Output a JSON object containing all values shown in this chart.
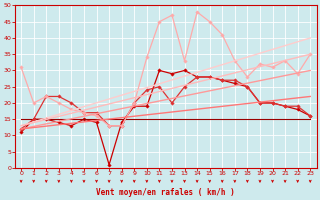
{
  "bg_color": "#ceeaed",
  "grid_color": "#ffffff",
  "xlabel": "Vent moyen/en rafales ( km/h )",
  "xlabel_color": "#cc0000",
  "tick_color": "#cc0000",
  "arrow_color": "#cc0000",
  "xlim": [
    -0.5,
    23.5
  ],
  "ylim": [
    0,
    50
  ],
  "yticks": [
    0,
    5,
    10,
    15,
    20,
    25,
    30,
    35,
    40,
    45,
    50
  ],
  "xticks": [
    0,
    1,
    2,
    3,
    4,
    5,
    6,
    7,
    8,
    9,
    10,
    11,
    12,
    13,
    14,
    15,
    16,
    17,
    18,
    19,
    20,
    21,
    22,
    23
  ],
  "lines": [
    {
      "x": [
        0,
        1,
        2,
        3,
        4,
        5,
        6,
        7,
        8,
        9,
        10,
        11,
        12,
        13,
        14,
        15,
        16,
        17,
        18,
        19,
        20,
        21,
        22,
        23
      ],
      "y": [
        11,
        15,
        15,
        14,
        13,
        15,
        14,
        1,
        14,
        19,
        19,
        30,
        29,
        30,
        28,
        28,
        27,
        26,
        25,
        20,
        20,
        19,
        18,
        16
      ],
      "color": "#cc0000",
      "lw": 0.9,
      "marker": "D",
      "ms": 1.8
    },
    {
      "x": [
        0,
        1,
        2,
        3,
        4,
        5,
        6,
        7,
        8,
        9,
        10,
        11,
        12,
        13,
        14,
        15,
        16,
        17,
        18,
        19,
        20,
        21,
        22,
        23
      ],
      "y": [
        15,
        15,
        15,
        15,
        15,
        15,
        15,
        15,
        15,
        15,
        15,
        15,
        15,
        15,
        15,
        15,
        15,
        15,
        15,
        15,
        15,
        15,
        15,
        15
      ],
      "color": "#990000",
      "lw": 0.8,
      "marker": null,
      "ms": 0
    },
    {
      "x": [
        0,
        1,
        2,
        3,
        4,
        5,
        6,
        7,
        8,
        9,
        10,
        11,
        12,
        13,
        14,
        15,
        16,
        17,
        18,
        19,
        20,
        21,
        22,
        23
      ],
      "y": [
        12,
        15,
        22,
        22,
        20,
        17,
        17,
        13,
        13,
        20,
        24,
        25,
        20,
        25,
        28,
        28,
        27,
        27,
        25,
        20,
        20,
        19,
        19,
        16
      ],
      "color": "#dd3333",
      "lw": 0.9,
      "marker": "D",
      "ms": 1.8
    },
    {
      "x": [
        0,
        1,
        2,
        3,
        4,
        5,
        6,
        7,
        8,
        9,
        10,
        11,
        12,
        13,
        14,
        15,
        16,
        17,
        18,
        19,
        20,
        21,
        22,
        23
      ],
      "y": [
        31,
        20,
        22,
        20,
        18,
        17,
        16,
        13,
        13,
        20,
        34,
        45,
        47,
        33,
        48,
        45,
        41,
        33,
        28,
        32,
        31,
        33,
        29,
        35
      ],
      "color": "#ffaaaa",
      "lw": 0.9,
      "marker": "D",
      "ms": 1.8
    },
    {
      "x": [
        0,
        23
      ],
      "y": [
        13,
        40
      ],
      "color": "#ffcccc",
      "lw": 1.0,
      "marker": null,
      "ms": 0
    },
    {
      "x": [
        0,
        23
      ],
      "y": [
        13,
        35
      ],
      "color": "#ffbbbb",
      "lw": 1.0,
      "marker": null,
      "ms": 0
    },
    {
      "x": [
        0,
        23
      ],
      "y": [
        12,
        30
      ],
      "color": "#ff9999",
      "lw": 1.0,
      "marker": null,
      "ms": 0
    },
    {
      "x": [
        0,
        23
      ],
      "y": [
        12,
        22
      ],
      "color": "#ff7777",
      "lw": 1.0,
      "marker": null,
      "ms": 0
    }
  ]
}
